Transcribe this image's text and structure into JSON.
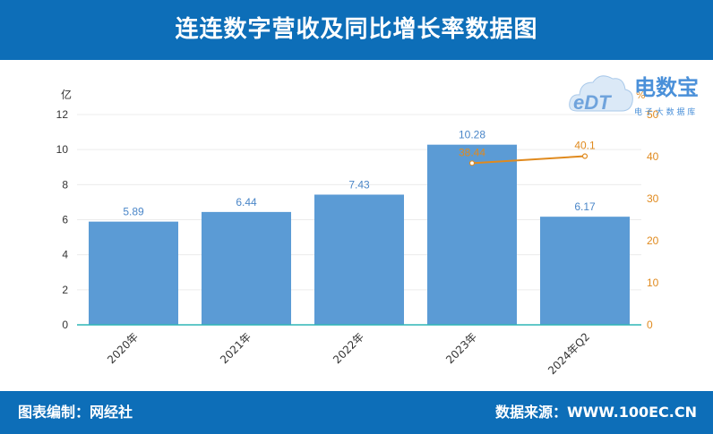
{
  "header": {
    "title": "连连数字营收及同比增长率数据图"
  },
  "footer": {
    "left_text": "图表编制：网经社",
    "right_text": "数据来源：WWW.100EC.CN"
  },
  "logo": {
    "brand_text": "电数宝",
    "sub_text": "电 子 大 数 据 库",
    "mark_text": "eDT"
  },
  "colors": {
    "header_bg": "#0d6eb8",
    "bar": "#5b9bd5",
    "line": "#e08a1e",
    "left_axis_line": "#2fb5b5"
  },
  "chart_data": {
    "type": "bar",
    "categories": [
      "2020年",
      "2021年",
      "2022年",
      "2023年",
      "2024年Q2"
    ],
    "series": [
      {
        "values": [
          5.89,
          6.44,
          7.43,
          10.28,
          6.17
        ],
        "axis": "left",
        "type": "bar"
      },
      {
        "values": [
          null,
          null,
          null,
          38.44,
          40.1
        ],
        "axis": "right",
        "type": "line"
      }
    ],
    "y_left": {
      "label": "亿",
      "ticks": [
        "0",
        "2",
        "4",
        "6",
        "8",
        "10",
        "12"
      ],
      "range": [
        0,
        12
      ]
    },
    "y_right": {
      "label": "%",
      "ticks": [
        "0",
        "10",
        "20",
        "30",
        "40",
        "50"
      ],
      "range": [
        0,
        50
      ]
    },
    "bar_labels": [
      "5.89",
      "6.44",
      "7.43",
      "10.28",
      "6.17"
    ],
    "line_labels": [
      "38.44",
      "40.1"
    ],
    "grid": true
  }
}
